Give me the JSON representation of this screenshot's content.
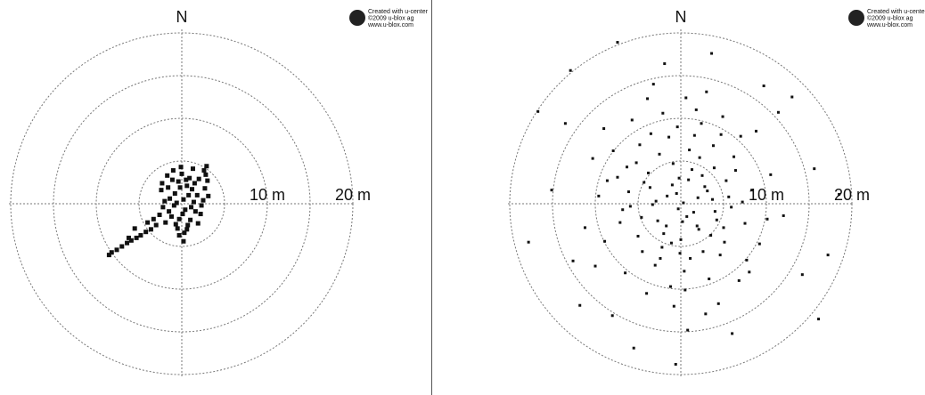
{
  "chart_data": [
    {
      "type": "scatter",
      "north_label": "N",
      "credit": [
        "Created with u-center",
        "©2009 u-blox ag",
        "www.u-blox.com"
      ],
      "xlim": [
        -20,
        20
      ],
      "ylim": [
        -20,
        20
      ],
      "rings": [
        5,
        10,
        15,
        20
      ],
      "xticks": [
        {
          "value": 10,
          "label": "10 m"
        },
        {
          "value": 20,
          "label": "20 m"
        }
      ],
      "color": "#111111",
      "marker_size": 5,
      "x": [
        0.2,
        -0.8,
        1.1,
        -1.5,
        0.6,
        1.8,
        -0.3,
        -2.0,
        2.2,
        0.9,
        -1.1,
        1.5,
        -0.5,
        0.4,
        -1.9,
        2.5,
        -2.4,
        1.2,
        0.0,
        -0.9,
        1.9,
        0.7,
        -1.4,
        2.0,
        -0.2,
        1.4,
        -2.6,
        0.3,
        -1.7,
        2.7,
        -0.6,
        0.8,
        -1.2,
        1.6,
        -0.4,
        2.3,
        -2.2,
        0.1,
        1.0,
        -0.7,
        0.5,
        -1.6,
        2.8,
        2.6,
        1.3,
        -0.1,
        3.0,
        -1.0,
        0.6,
        -0.3,
        -3.0,
        -3.6,
        -4.2,
        -4.8,
        -5.3,
        -5.9,
        -6.4,
        -7.0,
        -7.6,
        -8.2,
        -8.5,
        -5.5,
        -6.2,
        -3.3,
        -4.0,
        2.9,
        0.2,
        -2.3,
        3.1
      ],
      "values": [
        0.5,
        1.2,
        -0.4,
        -0.9,
        2.1,
        1.0,
        -1.8,
        0.3,
        -1.2,
        3.0,
        2.8,
        2.4,
        -2.9,
        -0.7,
        -2.2,
        0.4,
        1.6,
        1.7,
        3.5,
        -0.2,
        -2.3,
        -2.5,
        0.6,
        2.9,
        1.9,
        0.2,
        -1.3,
        -3.4,
        3.3,
        1.8,
        0.1,
        1.0,
        -1.5,
        -0.9,
        2.6,
        -0.2,
        -0.4,
        -1.2,
        -1.9,
        -2.4,
        2.8,
        1.9,
        3.4,
        3.9,
        4.1,
        4.3,
        2.7,
        3.9,
        -3.0,
        -3.7,
        -2.5,
        -3.0,
        -3.3,
        -3.7,
        -4.0,
        -4.3,
        -4.6,
        -5.0,
        -5.4,
        -5.7,
        -6.0,
        -2.9,
        -4.0,
        -1.8,
        -2.2,
        4.4,
        -4.4,
        2.4,
        0.9
      ]
    },
    {
      "type": "scatter",
      "north_label": "N",
      "credit": [
        "Created with u-center",
        "©2009 u-blox ag",
        "www.u-blox.com"
      ],
      "xlim": [
        -20,
        20
      ],
      "ylim": [
        -20,
        20
      ],
      "rings": [
        5,
        10,
        15,
        20
      ],
      "xticks": [
        {
          "value": 10,
          "label": "10 m"
        },
        {
          "value": 20,
          "label": "20 m"
        }
      ],
      "color": "#111111",
      "marker_size": 3,
      "x": [
        -0.5,
        2.1,
        -4.3,
        5.6,
        -2.2,
        1.0,
        -6.8,
        3.9,
        -1.7,
        0.4,
        7.5,
        -3.5,
        2.8,
        -5.0,
        4.6,
        -0.9,
        6.2,
        -7.4,
        1.5,
        -2.9,
        3.3,
        -4.8,
        0.0,
        8.3,
        -8.9,
        2.4,
        -1.2,
        5.1,
        -6.1,
        3.7,
        -3.0,
        0.9,
        -5.7,
        7.0,
        -2.5,
        4.2,
        -0.3,
        1.8,
        -9.6,
        6.8,
        -4.0,
        2.6,
        -1.4,
        9.2,
        -7.9,
        0.6,
        -3.8,
        5.3,
        -0.8,
        3.0,
        -11.2,
        10.5,
        -6.5,
        4.9,
        -2.0,
        1.3,
        -4.6,
        7.7,
        -9.0,
        0.2,
        2.0,
        -1.0,
        3.5,
        -3.3,
        5.9,
        -5.2,
        1.1,
        -0.4,
        6.4,
        -7.1,
        8.8,
        -10.3,
        12.0,
        -12.6,
        4.4,
        -3.2,
        0.8,
        11.4,
        -13.5,
        14.2,
        -8.0,
        9.7,
        -15.1,
        15.6,
        -1.9,
        6.0,
        -11.8,
        13.0,
        -16.7,
        17.2,
        -5.5,
        3.6,
        -17.8,
        16.1,
        -7.4,
        -0.6,
        18.5,
        -12.9,
        -1.6,
        0.7,
        2.5,
        -2.7,
        1.9,
        -0.2,
        3.1,
        -3.6,
        0.3,
        -1.1,
        4.0,
        -2.4,
        2.2,
        -4.5,
        1.6,
        -6.3,
        5.0,
        -0.1,
        3.8,
        -5.9,
        7.2,
        -2.1,
        0.5,
        8.0,
        -8.6,
        4.7,
        -3.9,
        2.9,
        10.1,
        -10.0
      ],
      "values": [
        1.2,
        -3.0,
        2.5,
        0.8,
        -5.1,
        6.3,
        -0.7,
        4.2,
        -2.6,
        -7.9,
        -2.3,
        8.2,
        2.0,
        -3.8,
        -6.0,
        4.7,
        5.5,
        3.1,
        -1.0,
        0.3,
        -8.8,
        6.9,
        -4.2,
        1.6,
        -4.4,
        9.4,
        -9.7,
        -4.5,
        1.4,
        0.5,
        -7.2,
        2.8,
        9.8,
        7.9,
        5.8,
        -1.9,
        -0.6,
        11.0,
        0.9,
        -9.0,
        -10.5,
        -5.6,
        7.8,
        -4.7,
        6.2,
        12.4,
        3.6,
        2.7,
        -12.0,
        13.1,
        -2.8,
        3.4,
        -8.1,
        10.2,
        -3.5,
        4.0,
        -1.6,
        -6.6,
        8.8,
        -2.1,
        0.7,
        2.2,
        -3.7,
        -0.1,
        -0.4,
        4.8,
        -6.4,
        9.0,
        3.9,
        -2.2,
        8.5,
        5.3,
        -1.4,
        -6.7,
        -11.7,
        14.0,
        -14.8,
        10.7,
        9.4,
        -8.3,
        -13.1,
        13.8,
        1.6,
        4.1,
        16.4,
        -15.2,
        -11.9,
        12.5,
        10.8,
        -6.0,
        -16.9,
        17.6,
        -4.5,
        -13.5,
        18.9,
        -18.8,
        1.1,
        15.6,
        0.9,
        -1.5,
        3.3,
        -2.0,
        -2.6,
        3.0,
        1.5,
        1.9,
        0.1,
        -4.6,
        -0.9,
        -6.4,
        5.4,
        -5.6,
        8.0,
        4.3,
        -2.8,
        -5.8,
        6.8,
        -0.3,
        0.2,
        10.6,
        -10.1,
        -8.0,
        2.7,
        8.1,
        12.3,
        -12.9,
        -1.8,
        -7.3
      ]
    }
  ]
}
